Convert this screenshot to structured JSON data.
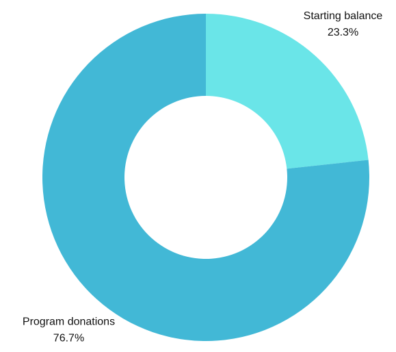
{
  "chart_data": {
    "type": "pie",
    "donut": true,
    "categories": [
      "Starting balance",
      "Program donations"
    ],
    "values": [
      23.3,
      76.7
    ],
    "value_labels": [
      "23.3%",
      "76.7%"
    ],
    "colors": [
      "#6ae5e8",
      "#42b8d6"
    ]
  }
}
